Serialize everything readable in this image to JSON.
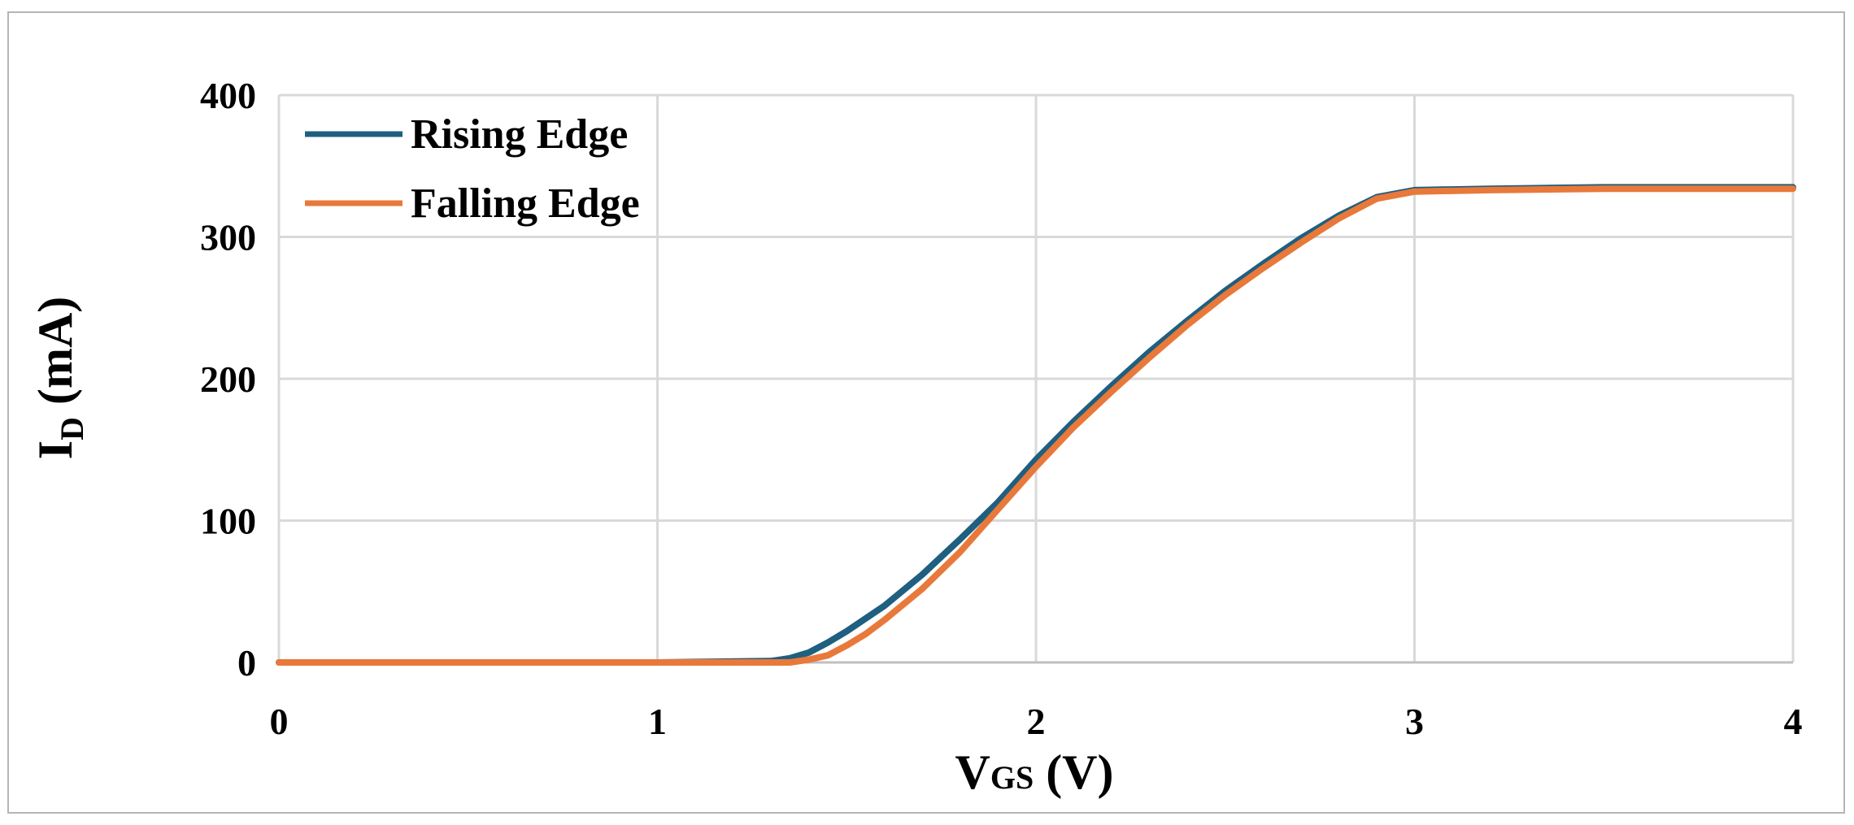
{
  "chart_data": {
    "type": "line",
    "xlabel": {
      "main": "V",
      "sub": "GS",
      "rest": " (V)"
    },
    "ylabel": {
      "main": "I",
      "sub": "D",
      "rest": " (mA)"
    },
    "xlim": [
      0,
      4
    ],
    "ylim": [
      0,
      400
    ],
    "xticks": [
      "0",
      "1",
      "2",
      "3",
      "4"
    ],
    "yticks": [
      "0",
      "100",
      "200",
      "300",
      "400"
    ],
    "grid": true,
    "legend": "top-left",
    "series": [
      {
        "name": "Rising Edge",
        "color": "#1f5f80",
        "x": [
          0,
          0.5,
          1.0,
          1.3,
          1.35,
          1.4,
          1.45,
          1.5,
          1.6,
          1.7,
          1.8,
          1.9,
          2.0,
          2.1,
          2.2,
          2.3,
          2.4,
          2.5,
          2.6,
          2.7,
          2.8,
          2.9,
          3.0,
          3.2,
          3.5,
          4.0
        ],
        "y": [
          0,
          0,
          0,
          1,
          3,
          7,
          14,
          22,
          40,
          62,
          87,
          113,
          143,
          170,
          195,
          219,
          241,
          262,
          281,
          299,
          315,
          328,
          333,
          334,
          335,
          335
        ]
      },
      {
        "name": "Falling Edge",
        "color": "#e8793a",
        "x": [
          0,
          0.5,
          1.0,
          1.35,
          1.4,
          1.45,
          1.5,
          1.55,
          1.6,
          1.7,
          1.8,
          1.9,
          2.0,
          2.1,
          2.2,
          2.3,
          2.4,
          2.5,
          2.6,
          2.7,
          2.8,
          2.9,
          3.0,
          3.2,
          3.5,
          4.0
        ],
        "y": [
          0,
          0,
          0,
          0,
          2,
          5,
          12,
          20,
          30,
          52,
          78,
          108,
          138,
          166,
          191,
          215,
          238,
          259,
          278,
          296,
          313,
          327,
          332,
          333,
          334,
          334
        ]
      }
    ]
  }
}
